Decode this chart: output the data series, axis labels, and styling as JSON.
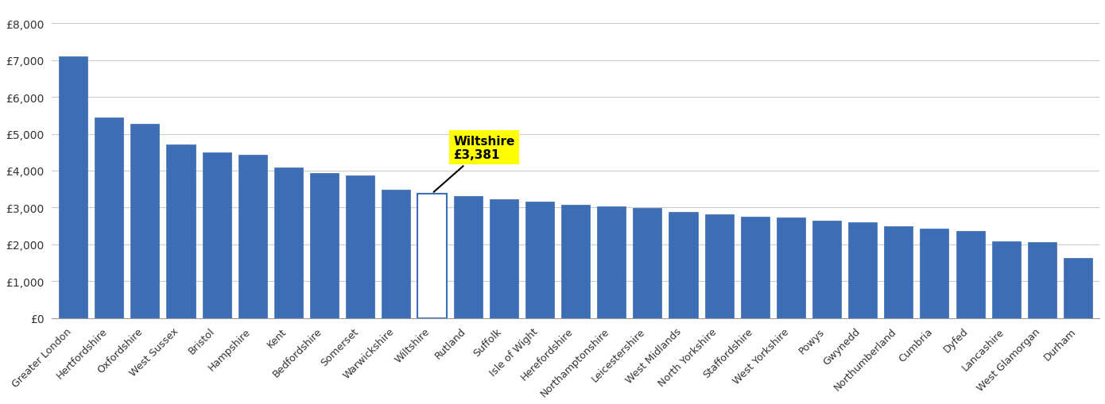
{
  "categories": [
    "Greater London",
    "Hertfordshire",
    "Oxfordshire",
    "West Sussex",
    "Bristol",
    "Hampshire",
    "Kent",
    "Bedfordshire",
    "Somerset",
    "Warwickshire",
    "Wiltshire",
    "Rutland",
    "Suffolk",
    "Isle of Wight",
    "Herefordshire",
    "Northamptonshire",
    "Leicestershire",
    "West Midlands",
    "North Yorkshire",
    "Staffordshire",
    "West Yorkshire",
    "Powys",
    "Gwynedd",
    "Northumberland",
    "Cumbria",
    "Dyfed",
    "Lancashire",
    "West Glamorgan",
    "Durham"
  ],
  "values": [
    7100,
    5450,
    5270,
    4720,
    4500,
    4430,
    4080,
    3930,
    3870,
    3490,
    3381,
    3300,
    3220,
    3160,
    3080,
    3030,
    2990,
    2870,
    2820,
    2760,
    2720,
    2650,
    2590,
    2500,
    2430,
    2370,
    2090,
    2060,
    1630
  ],
  "highlight_index": 10,
  "highlight_label": "Wiltshire\n£3,381",
  "highlight_value": 3381,
  "bar_color": "#3d6db5",
  "highlight_bar_color": "#ffffff",
  "highlight_bar_edge": "#3d6db5",
  "annotation_bg": "#ffff00",
  "annotation_text_color": "#000000",
  "ylim": [
    0,
    8500
  ],
  "yticks": [
    0,
    1000,
    2000,
    3000,
    4000,
    5000,
    6000,
    7000,
    8000
  ],
  "ytick_labels": [
    "£0",
    "£1,000",
    "£2,000",
    "£3,000",
    "£4,000",
    "£5,000",
    "£6,000",
    "£7,000",
    "£8,000"
  ],
  "background_color": "#ffffff",
  "grid_color": "#cccccc"
}
